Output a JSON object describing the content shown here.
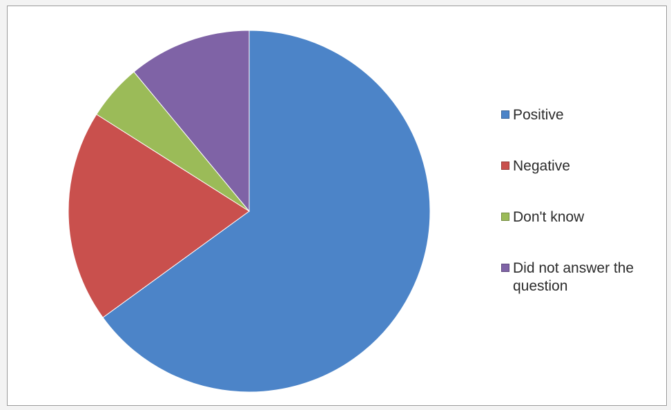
{
  "chart_data": {
    "type": "pie",
    "title": "",
    "start_angle_deg": 0,
    "direction": "clockwise",
    "slices": [
      {
        "label": "Positive",
        "value": 65,
        "color": "#4c84c8"
      },
      {
        "label": "Negative",
        "value": 19,
        "color": "#c9504d"
      },
      {
        "label": "Don't know",
        "value": 5,
        "color": "#9bbb58"
      },
      {
        "label": "Did not answer the question",
        "value": 11,
        "color": "#7f63a6"
      }
    ],
    "legend_position": "right"
  }
}
